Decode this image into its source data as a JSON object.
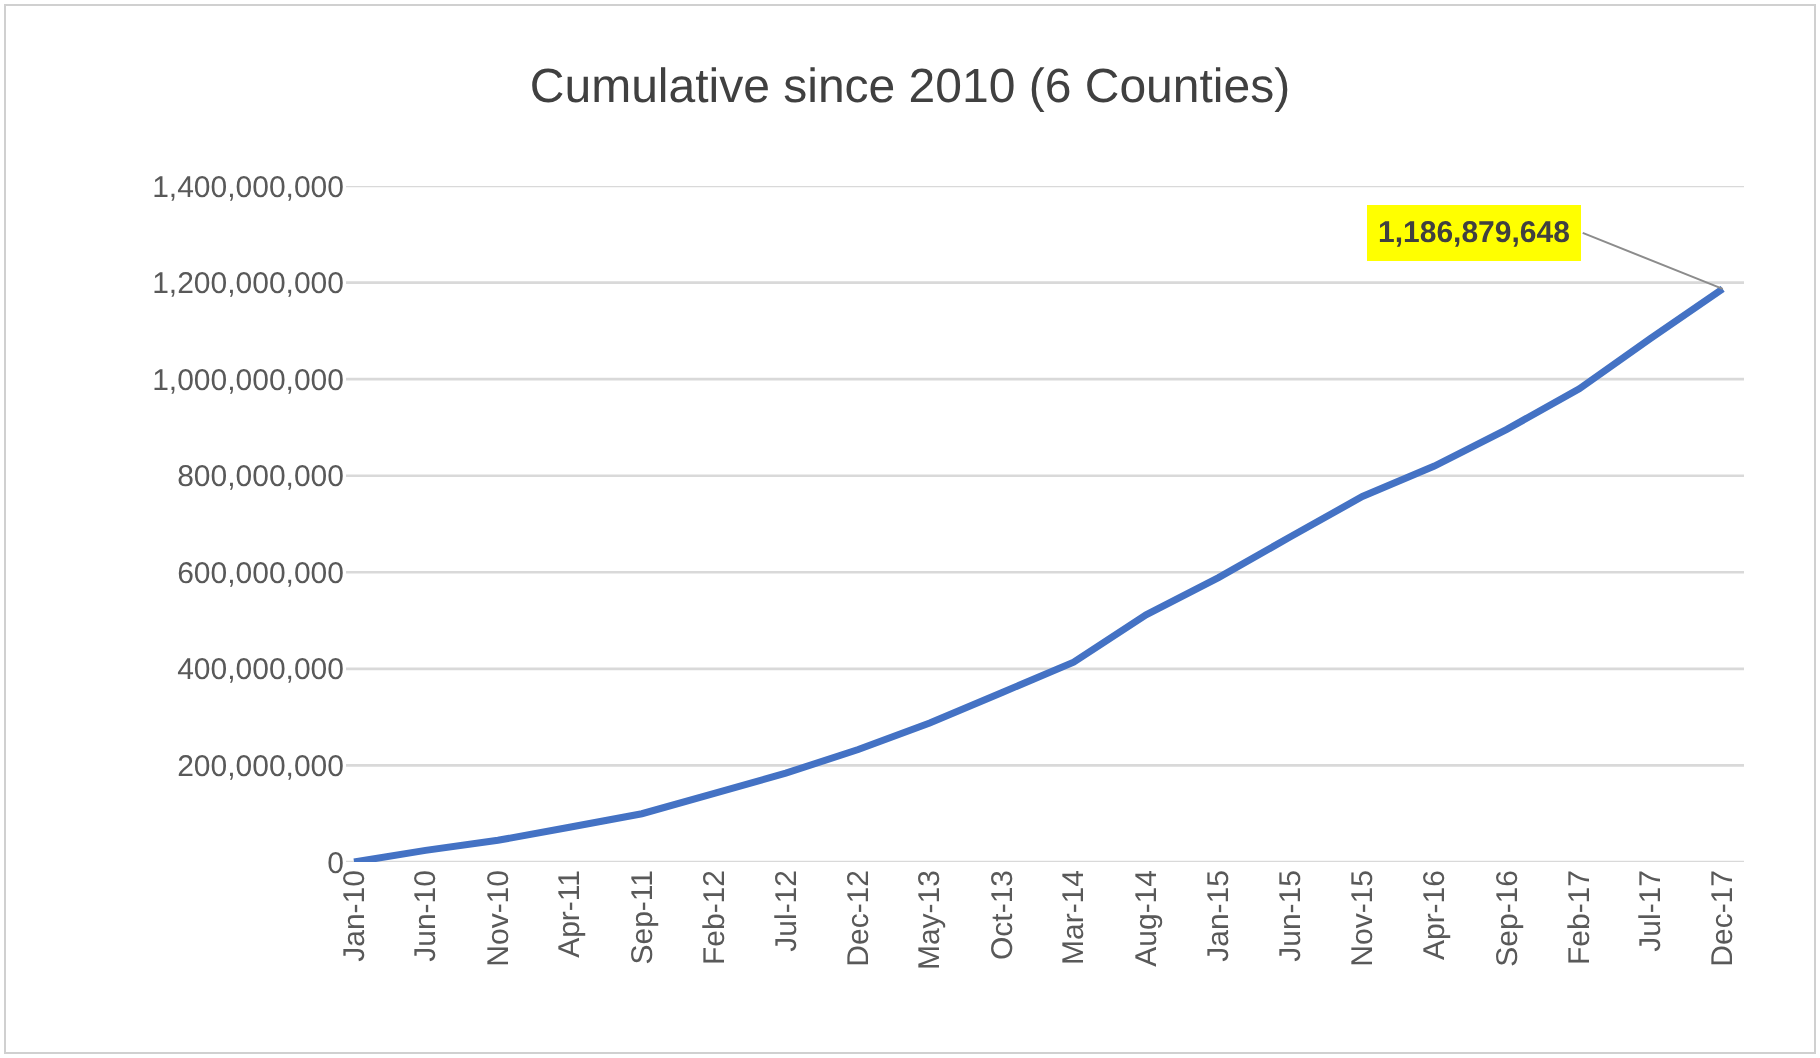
{
  "chart_data": {
    "type": "line",
    "title": "Cumulative since 2010 (6 Counties)",
    "x": [
      "2010-01",
      "2010-06",
      "2010-11",
      "2011-04",
      "2011-09",
      "2012-02",
      "2012-07",
      "2012-12",
      "2013-05",
      "2013-10",
      "2014-03",
      "2014-08",
      "2015-01",
      "2015-06",
      "2015-11",
      "2016-04",
      "2016-09",
      "2017-02",
      "2017-07",
      "2017-12"
    ],
    "series": [
      {
        "color": "#4472c4",
        "values": [
          0,
          24000000,
          45000000,
          72000000,
          100000000,
          142000000,
          184000000,
          233000000,
          288000000,
          351000000,
          414000000,
          512000000,
          589000000,
          673000000,
          757000000,
          820000000,
          896000000,
          980000000,
          1084000000,
          1186879648
        ]
      }
    ],
    "xlim": [
      "2009-12-15",
      "2018-01-15"
    ],
    "xticks": [
      {
        "value": "2010-01",
        "label": "Jan-10"
      },
      {
        "value": "2010-06",
        "label": "Jun-10"
      },
      {
        "value": "2010-11",
        "label": "Nov-10"
      },
      {
        "value": "2011-04",
        "label": "Apr-11"
      },
      {
        "value": "2011-09",
        "label": "Sep-11"
      },
      {
        "value": "2012-02",
        "label": "Feb-12"
      },
      {
        "value": "2012-07",
        "label": "Jul-12"
      },
      {
        "value": "2012-12",
        "label": "Dec-12"
      },
      {
        "value": "2013-05",
        "label": "May-13"
      },
      {
        "value": "2013-10",
        "label": "Oct-13"
      },
      {
        "value": "2014-03",
        "label": "Mar-14"
      },
      {
        "value": "2014-08",
        "label": "Aug-14"
      },
      {
        "value": "2015-01",
        "label": "Jan-15"
      },
      {
        "value": "2015-06",
        "label": "Jun-15"
      },
      {
        "value": "2015-11",
        "label": "Nov-15"
      },
      {
        "value": "2016-04",
        "label": "Apr-16"
      },
      {
        "value": "2016-09",
        "label": "Sep-16"
      },
      {
        "value": "2017-02",
        "label": "Feb-17"
      },
      {
        "value": "2017-07",
        "label": "Jul-17"
      },
      {
        "value": "2017-12",
        "label": "Dec-17"
      }
    ],
    "ylim": [
      0,
      1400000000
    ],
    "yticks": [
      {
        "value": 0,
        "label": "0"
      },
      {
        "value": 200000000,
        "label": "200,000,000"
      },
      {
        "value": 400000000,
        "label": "400,000,000"
      },
      {
        "value": 600000000,
        "label": "600,000,000"
      },
      {
        "value": 800000000,
        "label": "800,000,000"
      },
      {
        "value": 1000000000,
        "label": "1,000,000,000"
      },
      {
        "value": 1200000000,
        "label": "1,200,000,000"
      },
      {
        "value": 1400000000,
        "label": "1,400,000,000"
      }
    ],
    "annotations": [
      {
        "text": "1,186,879,648",
        "x": "2017-12",
        "y": 1186879648
      }
    ],
    "grid": "y",
    "marker": "none",
    "line_style": "solid"
  }
}
